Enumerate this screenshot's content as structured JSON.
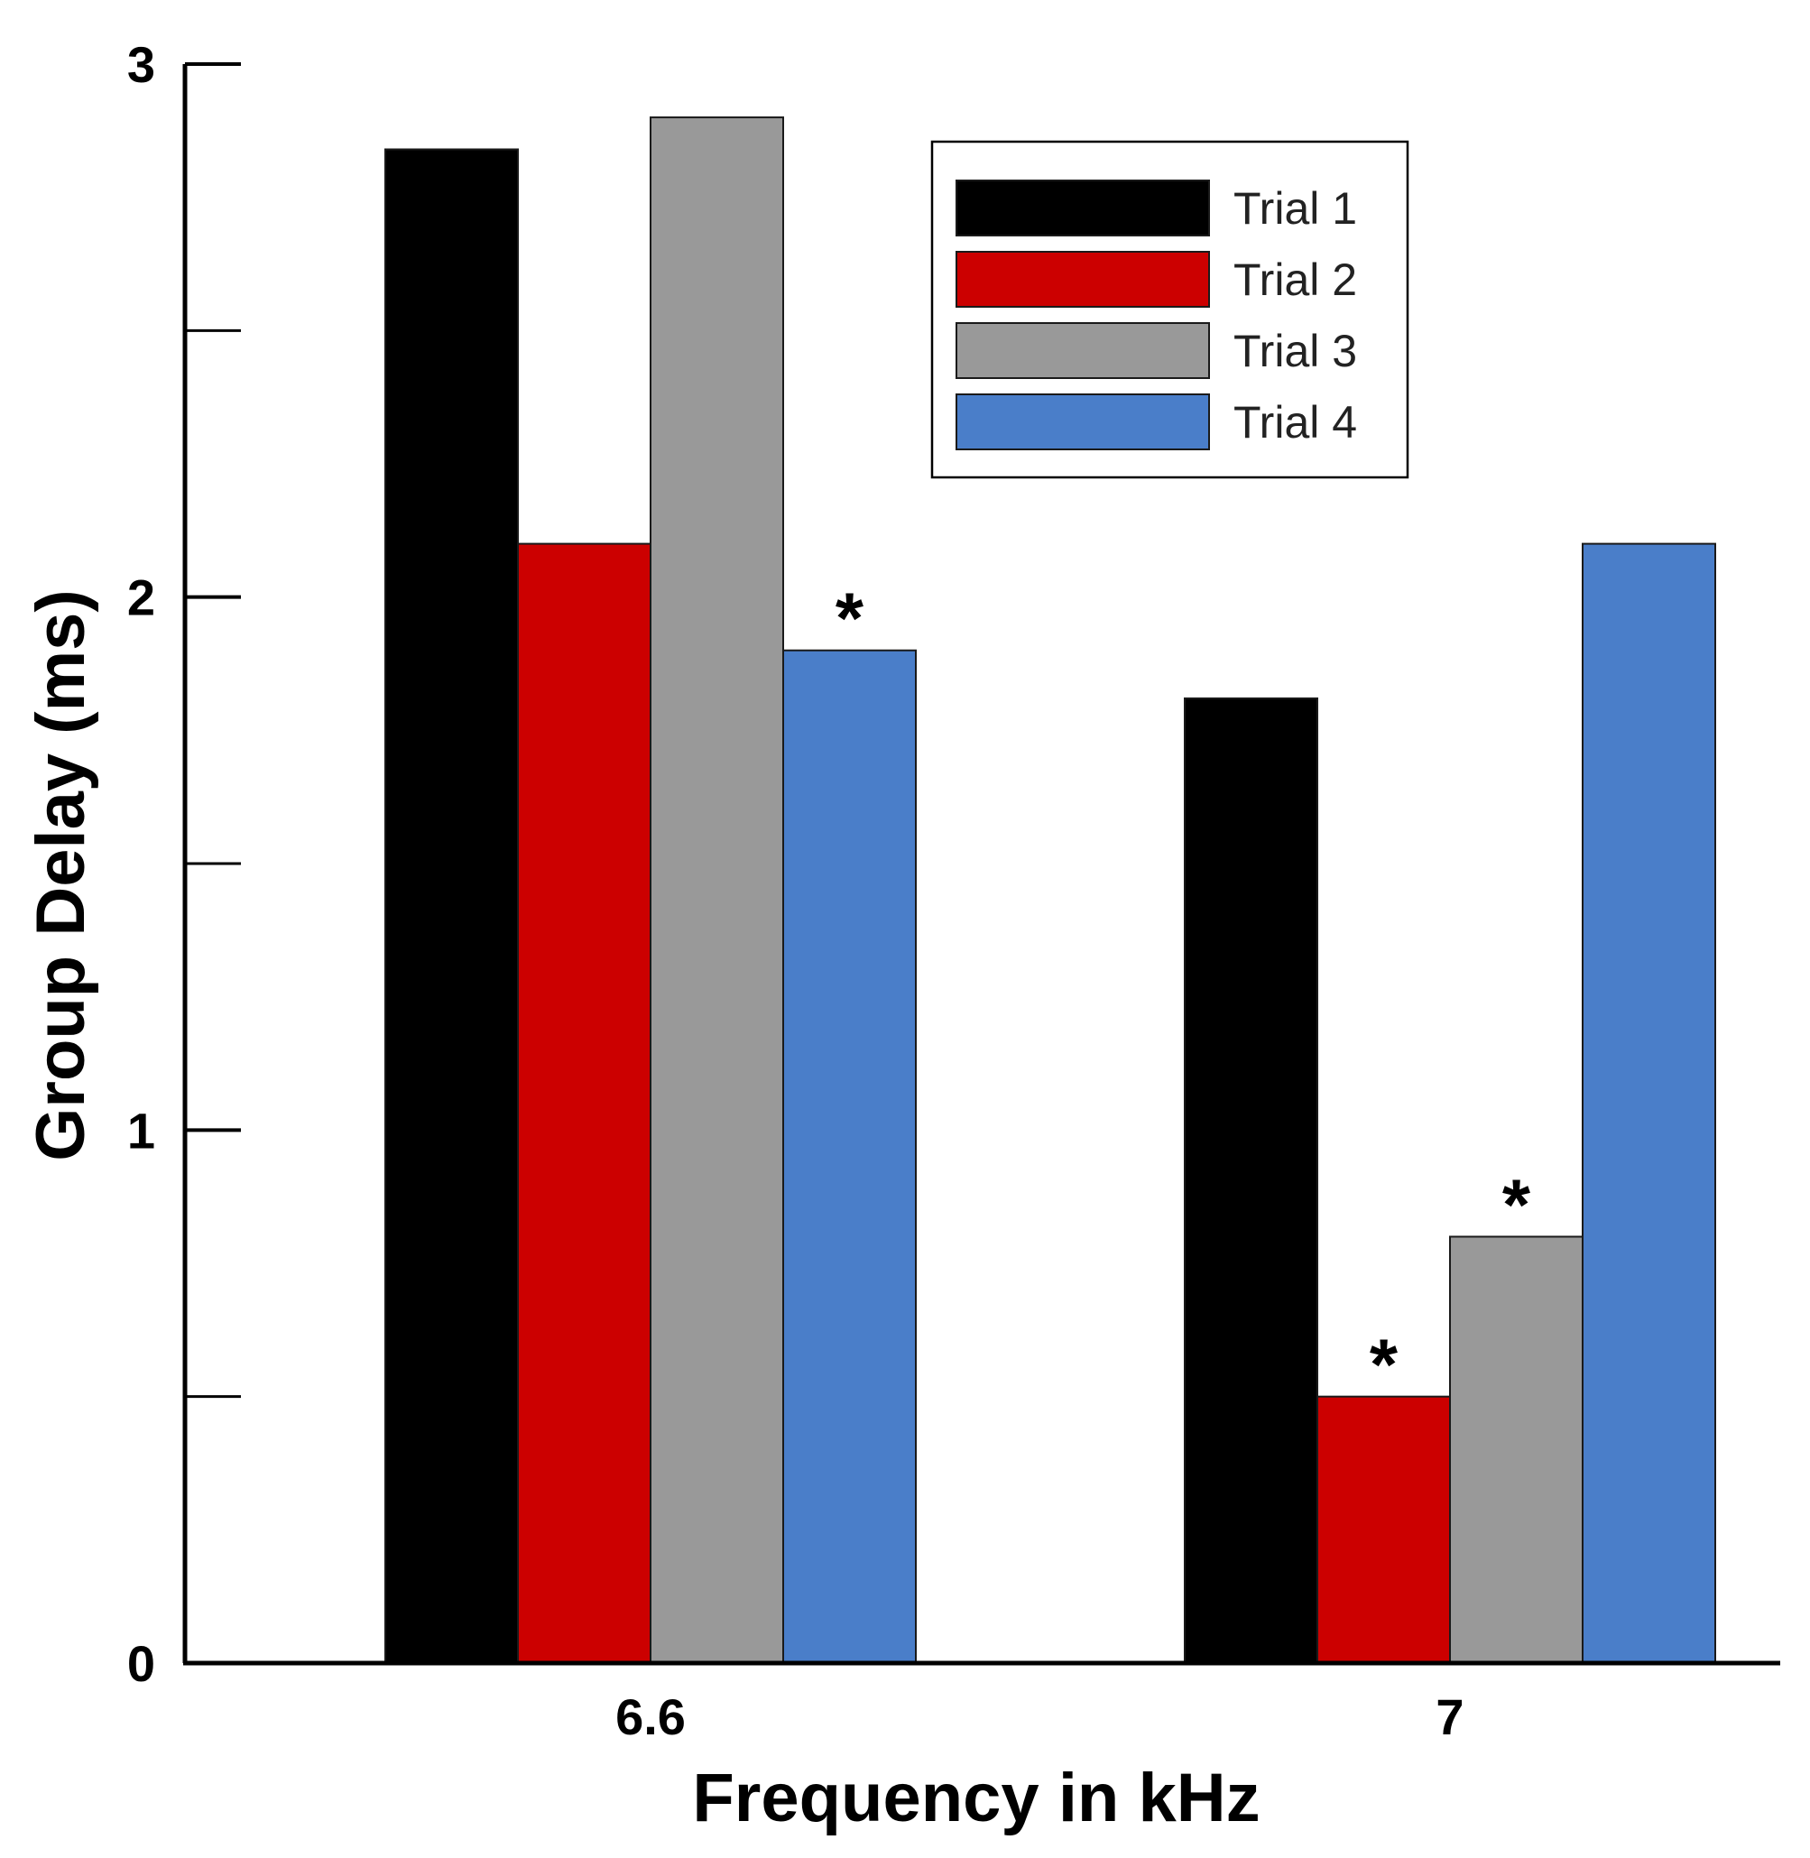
{
  "chart_data": {
    "type": "bar",
    "title": "",
    "xlabel": "Frequency in kHz",
    "ylabel": "Group Delay (ms)",
    "ylim": [
      0,
      3
    ],
    "yticks": [
      0,
      0.5,
      1,
      1.5,
      2,
      2.5,
      3
    ],
    "ytick_labels": [
      "0",
      "",
      "1",
      "",
      "2",
      "",
      "3"
    ],
    "categories": [
      "6.6",
      "7"
    ],
    "series": [
      {
        "name": "Trial 1",
        "color": "#000000",
        "values": [
          2.84,
          1.81
        ],
        "marks": [
          "",
          ""
        ]
      },
      {
        "name": "Trial 2",
        "color": "#cc0000",
        "values": [
          2.1,
          0.5
        ],
        "marks": [
          "",
          "*"
        ]
      },
      {
        "name": "Trial 3",
        "color": "#999999",
        "values": [
          2.9,
          0.8
        ],
        "marks": [
          "",
          "*"
        ]
      },
      {
        "name": "Trial 4",
        "color": "#4a7ec9",
        "values": [
          1.9,
          2.1
        ],
        "marks": [
          "*",
          ""
        ]
      }
    ],
    "legend_position": "top-right",
    "grid": false
  }
}
